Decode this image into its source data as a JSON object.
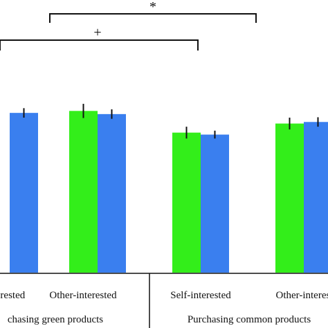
{
  "chart_data": {
    "type": "bar",
    "groups": [
      {
        "label": "Purchasing green products",
        "display_label": "chasing green products",
        "categories": [
          {
            "label": "Self-interested",
            "display_label": "erested",
            "values": [
              null,
              4.05
            ],
            "errors": [
              null,
              0.12
            ]
          },
          {
            "label": "Other-interested",
            "display_label": "Other-interested",
            "values": [
              4.1,
              4.02
            ],
            "errors": [
              0.18,
              0.12
            ]
          }
        ]
      },
      {
        "label": "Purchasing common products",
        "display_label": "Purchasing common products",
        "categories": [
          {
            "label": "Self-interested",
            "display_label": "Self-interested",
            "values": [
              3.55,
              3.5
            ],
            "errors": [
              0.15,
              0.1
            ]
          },
          {
            "label": "Other-interested",
            "display_label": "Other-interest",
            "values": [
              3.78,
              3.82
            ],
            "errors": [
              0.15,
              0.12
            ]
          }
        ]
      }
    ],
    "series": [
      {
        "name": "",
        "color": "#33ee1a"
      },
      {
        "name": "",
        "color": "#3a7fef"
      }
    ],
    "significance": [
      {
        "symbol": "*"
      },
      {
        "symbol": "+"
      }
    ],
    "ylim": [
      0,
      6
    ],
    "grid": false,
    "xlabel": "",
    "ylabel": ""
  }
}
